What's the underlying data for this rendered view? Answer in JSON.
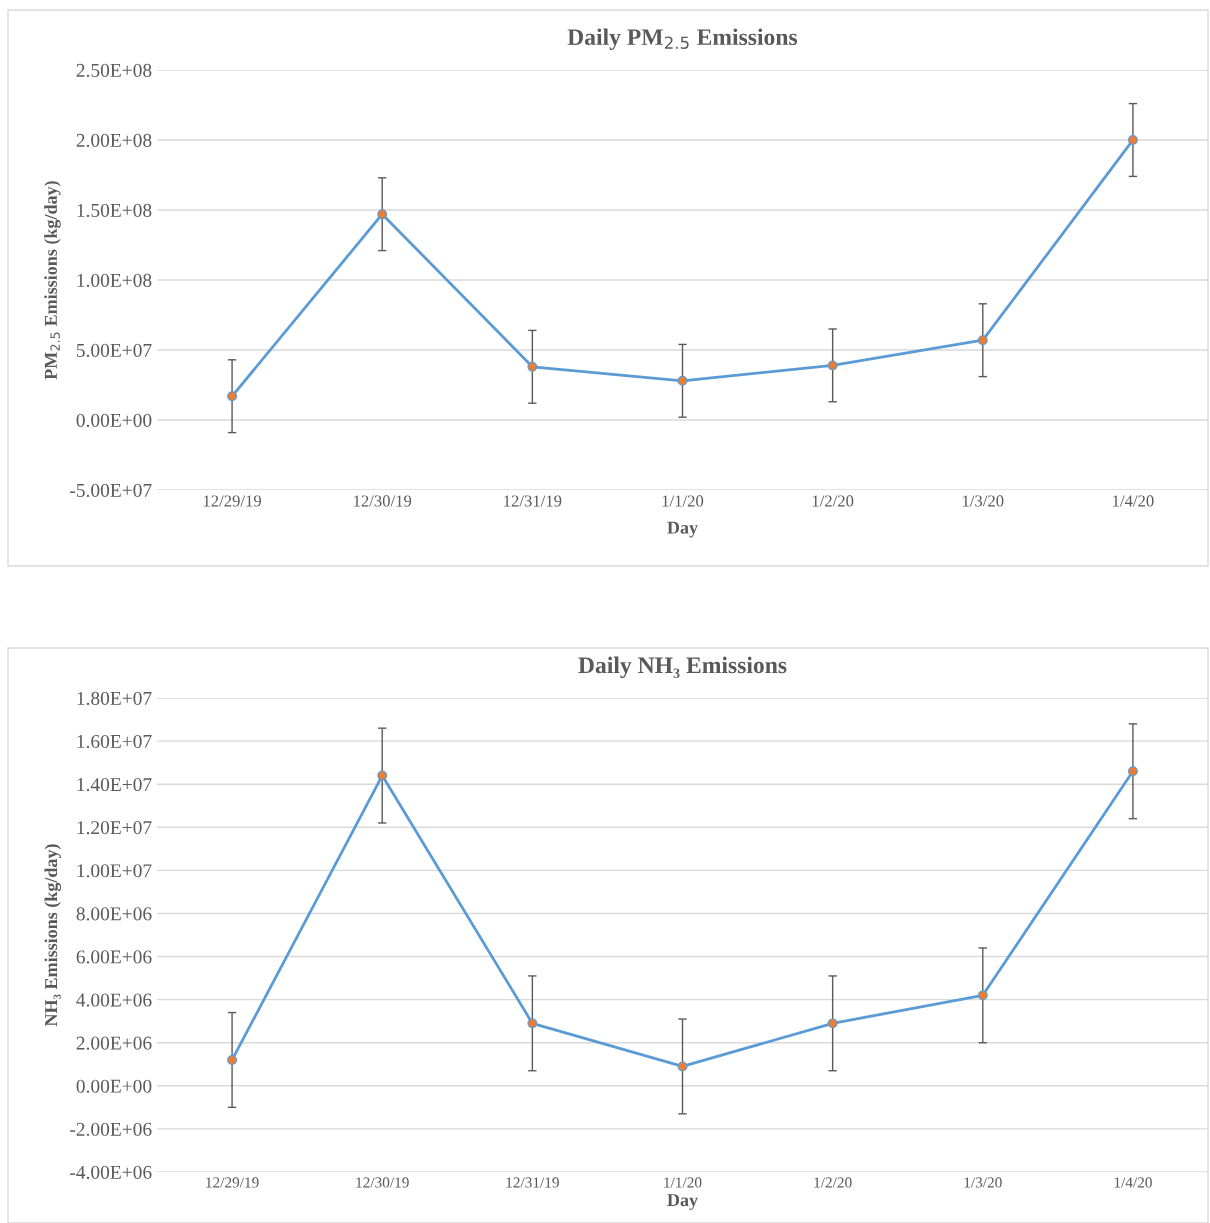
{
  "chart_data": [
    {
      "type": "line",
      "title": "Daily PM$_{2.5}$ Emissions",
      "xlabel": "Day",
      "ylabel": "PM$_{2.5}$ Emissions (kg/day)",
      "categories": [
        "12/29/19",
        "12/30/19",
        "12/31/19",
        "1/1/20",
        "1/2/20",
        "1/3/20",
        "1/4/20"
      ],
      "series": [
        {
          "color": "#5b9bd5",
          "values": [
            17000000.0,
            147000000.0,
            38000000.0,
            28000000.0,
            39000000.0,
            57000000.0,
            200000000.0
          ],
          "errors": [
            26000000.0,
            26000000.0,
            26000000.0,
            26000000.0,
            26000000.0,
            26000000.0,
            26000000.0
          ]
        }
      ],
      "ylim": [
        -50000000.0,
        250000000.0
      ],
      "yticks": [
        {
          "value": -50000000.0,
          "label": "-5.00E+07"
        },
        {
          "value": 0,
          "label": "0.00E+00"
        },
        {
          "value": 50000000.0,
          "label": "5.00E+07"
        },
        {
          "value": 100000000.0,
          "label": "1.00E+08"
        },
        {
          "value": 150000000.0,
          "label": "1.50E+08"
        },
        {
          "value": 200000000.0,
          "label": "2.00E+08"
        },
        {
          "value": 250000000.0,
          "label": "2.50E+08"
        }
      ],
      "grid": "y",
      "marker": "circle",
      "line_style": "solid",
      "legend": false
    },
    {
      "type": "line",
      "title": "Daily NH₃ Emissions",
      "xlabel": "Day",
      "ylabel": "NH₃ Emissions (kg/day)",
      "categories": [
        "12/29/19",
        "12/30/19",
        "12/31/19",
        "1/1/20",
        "1/2/20",
        "1/3/20",
        "1/4/20"
      ],
      "series": [
        {
          "color": "#5b9bd5",
          "values": [
            1200000.0,
            14400000.0,
            2900000.0,
            900000.0,
            2900000.0,
            4200000.0,
            14600000.0
          ],
          "errors": [
            2200000.0,
            2200000.0,
            2200000.0,
            2200000.0,
            2200000.0,
            2200000.0,
            2200000.0
          ]
        }
      ],
      "ylim": [
        -4000000.0,
        18000000.0
      ],
      "yticks": [
        {
          "value": -4000000.0,
          "label": "-4.00E+06"
        },
        {
          "value": -2000000.0,
          "label": "-2.00E+06"
        },
        {
          "value": 0,
          "label": "0.00E+00"
        },
        {
          "value": 2000000.0,
          "label": "2.00E+06"
        },
        {
          "value": 4000000.0,
          "label": "4.00E+06"
        },
        {
          "value": 6000000.0,
          "label": "6.00E+06"
        },
        {
          "value": 8000000.0,
          "label": "8.00E+06"
        },
        {
          "value": 10000000.0,
          "label": "1.00E+07"
        },
        {
          "value": 12000000.0,
          "label": "1.20E+07"
        },
        {
          "value": 14000000.0,
          "label": "1.40E+07"
        },
        {
          "value": 16000000.0,
          "label": "1.60E+07"
        },
        {
          "value": 18000000.0,
          "label": "1.80E+07"
        }
      ],
      "grid": "y",
      "marker": "circle",
      "line_style": "solid",
      "legend": false
    }
  ]
}
